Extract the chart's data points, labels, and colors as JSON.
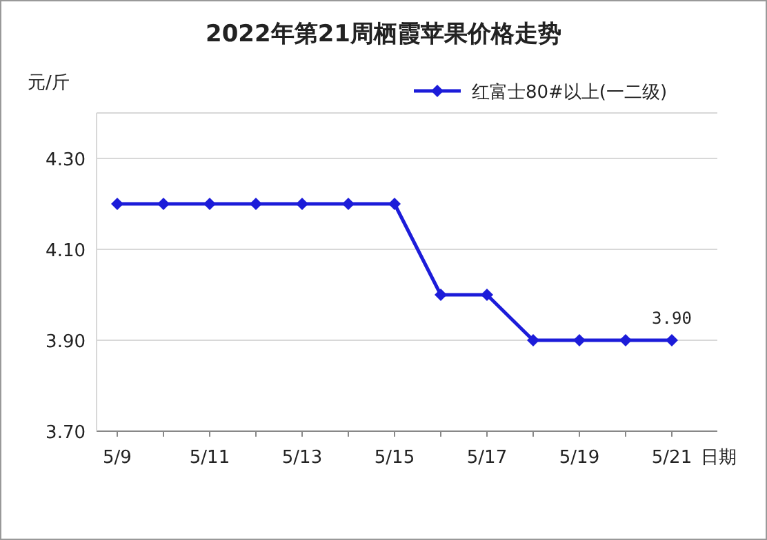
{
  "chart_data": {
    "type": "line",
    "title": "2022年第21周栖霞苹果价格走势",
    "xlabel": "日期",
    "ylabel": "元/斤",
    "categories": [
      "5/9",
      null,
      "5/11",
      null,
      "5/13",
      null,
      "5/15",
      null,
      "5/17",
      null,
      "5/19",
      null,
      "5/21"
    ],
    "series": [
      {
        "name": "红富士80#以上(一二级)",
        "color": "#1c1cd9",
        "values": [
          4.2,
          4.2,
          4.2,
          4.2,
          4.2,
          4.2,
          4.2,
          4.0,
          4.0,
          3.9,
          3.9,
          3.9,
          3.9
        ],
        "value_labels": [
          null,
          null,
          null,
          null,
          null,
          null,
          null,
          null,
          null,
          null,
          null,
          null,
          "3.90"
        ]
      }
    ],
    "ylim": [
      3.7,
      4.4
    ],
    "yticks": [
      {
        "value": 3.7,
        "label": "3.70"
      },
      {
        "value": 3.9,
        "label": "3.90"
      },
      {
        "value": 4.1,
        "label": "4.10"
      },
      {
        "value": 4.3,
        "label": "4.30"
      }
    ],
    "grid": "y",
    "legend": "top right",
    "marker": "diamond"
  }
}
